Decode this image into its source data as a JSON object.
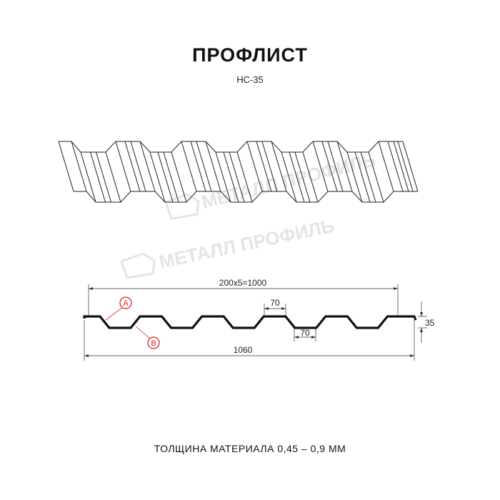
{
  "header": {
    "title": "ПРОФЛИСТ",
    "subtitle": "НС-35"
  },
  "watermark": "МЕТАЛЛ ПРОФИЛЬ",
  "dimensions": {
    "pitch_total": "200x5=1000",
    "total_width": "1060",
    "top_flat": "70",
    "bottom_flat": "70",
    "height": "35"
  },
  "markers": {
    "a": "A",
    "b": "B"
  },
  "colors": {
    "profile": "#111111",
    "marker": "#e21e1e",
    "watermark": "#e4e4e4"
  },
  "footer": "ТОЛЩИНА МАТЕРИАЛА 0,45 – 0,9 ММ"
}
